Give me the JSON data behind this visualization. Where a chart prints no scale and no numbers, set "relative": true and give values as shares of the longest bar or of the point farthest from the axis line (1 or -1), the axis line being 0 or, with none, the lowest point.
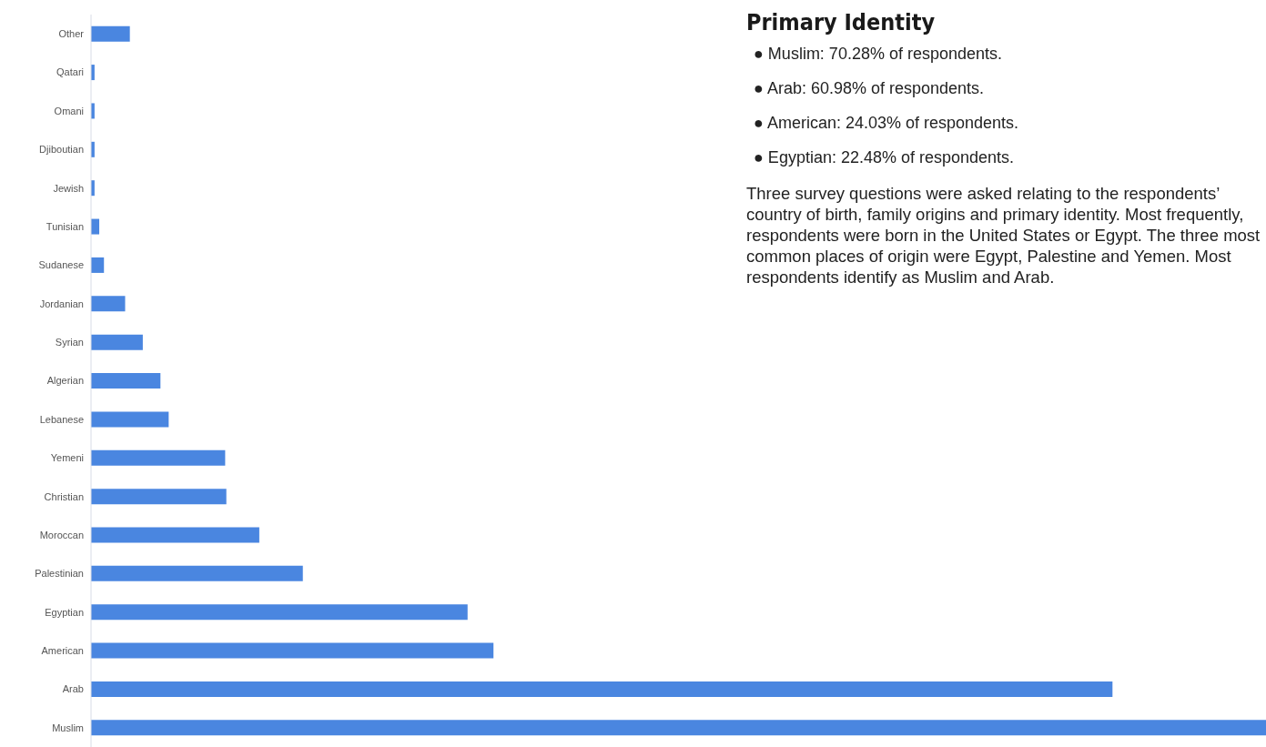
{
  "chart_data": {
    "type": "bar",
    "orientation": "horizontal",
    "relative": true,
    "title": "Primary Identity",
    "subtitle": "Three survey questions were asked relating to the respondents’ country of birth, family origins and primary identity. Most frequently, respondents were born in the United States or Egypt. The three most common places of origin were Egypt, Palestine and Yemen. Most respondents identify as Muslim and Arab.",
    "annotations": [
      "● Muslim: 70.28% of respondents.",
      "● Arab: 60.98% of respondents.",
      "● American: 24.03% of respondents.",
      "● Egyptian: 22.48% of respondents."
    ],
    "categories": [
      "Other",
      "Qatari",
      "Omani",
      "Djiboutian",
      "Jewish",
      "Tunisian",
      "Sudanese",
      "Jordanian",
      "Syrian",
      "Algerian",
      "Lebanese",
      "Yemeni",
      "Christian",
      "Moroccan",
      "Palestinian",
      "Egyptian",
      "American",
      "Arab",
      "Muslim"
    ],
    "values": [
      0.033,
      0.003,
      0.003,
      0.003,
      0.003,
      0.007,
      0.011,
      0.029,
      0.044,
      0.059,
      0.066,
      0.114,
      0.115,
      0.143,
      0.18,
      0.32,
      0.342,
      0.868,
      1
    ],
    "color": "#4a86e0"
  }
}
